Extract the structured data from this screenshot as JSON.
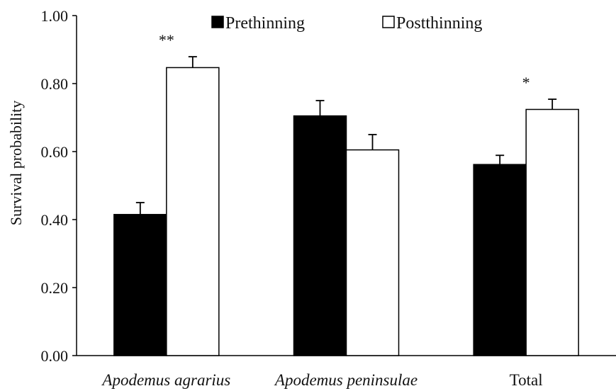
{
  "chart_data": {
    "type": "bar",
    "title": "",
    "xlabel": "",
    "ylabel": "Survival probability",
    "ylim": [
      0,
      1.0
    ],
    "yticks": [
      "0.00",
      "0.20",
      "0.40",
      "0.60",
      "0.80",
      "1.00"
    ],
    "categories": [
      "Apodemus agrarius",
      "Apodemus peninsulae",
      "Total"
    ],
    "category_italic": [
      true,
      true,
      false
    ],
    "series": [
      {
        "name": "Prethinning",
        "color": "#000000",
        "values": [
          0.415,
          0.705,
          0.562
        ],
        "errors": [
          0.035,
          0.045,
          0.027
        ]
      },
      {
        "name": "Postthinning",
        "color": "#ffffff",
        "values": [
          0.847,
          0.605,
          0.724
        ],
        "errors": [
          0.032,
          0.045,
          0.03
        ]
      }
    ],
    "significance": [
      "**",
      "",
      "*"
    ],
    "legend_position": "top",
    "grid": false
  }
}
